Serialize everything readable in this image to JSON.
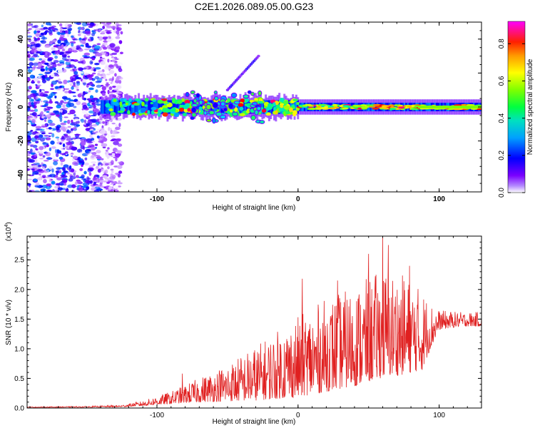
{
  "figure_title": "C2E1.2026.089.05.00.G23",
  "colors": {
    "snr_line": "#e02020",
    "axis": "#000000",
    "background": "#ffffff"
  },
  "chart_data": [
    {
      "type": "heatmap",
      "title": "C2E1.2026.089.05.00.G23",
      "xlabel": "Height of straight line (km)",
      "ylabel": "Frequency (Hz)",
      "xlim": [
        -192,
        130
      ],
      "ylim": [
        -50,
        50
      ],
      "x_ticks": [
        -100,
        0,
        100
      ],
      "y_ticks": [
        -40,
        -20,
        0,
        20,
        40
      ],
      "colorbar": {
        "label": "Normalized spectral amplitude",
        "range": [
          0.0,
          0.92
        ],
        "ticks": [
          0.0,
          0.2,
          0.4,
          0.6,
          0.8
        ],
        "colormap": [
          "#ffffff",
          "#7a00ff",
          "#0000ff",
          "#00ccff",
          "#00ff80",
          "#80ff00",
          "#ffff00",
          "#ff8000",
          "#ff0000",
          "#ff00ff"
        ]
      },
      "features": [
        {
          "name": "noise region",
          "x_range": [
            -192,
            -125
          ],
          "y_range": [
            -50,
            50
          ],
          "amplitude": 0.12
        },
        {
          "name": "carrier band",
          "x_range": [
            -140,
            130
          ],
          "center_frequency": 0,
          "half_width_hz": [
            4,
            3
          ],
          "amplitude": 0.85
        },
        {
          "name": "diagonal streak",
          "x_range": [
            -50,
            -28
          ],
          "y_range": [
            10,
            30
          ],
          "amplitude": 0.15
        }
      ]
    },
    {
      "type": "line",
      "xlabel": "Height of straight line (km)",
      "ylabel": "SNR (10 * v/v)",
      "y_multiplier": "(x10",
      "y_multiplier_exp": "4",
      "xlim": [
        -192,
        130
      ],
      "ylim": [
        0,
        2.9
      ],
      "x_ticks": [
        -100,
        0,
        100
      ],
      "y_ticks": [
        0.0,
        0.5,
        1.0,
        1.5,
        2.0,
        2.5
      ],
      "envelope": {
        "x": [
          -192,
          -150,
          -125,
          -110,
          -90,
          -75,
          -50,
          -30,
          -15,
          0,
          20,
          40,
          60,
          75,
          88,
          95,
          100,
          115,
          130
        ],
        "values": [
          0.02,
          0.03,
          0.05,
          0.12,
          0.28,
          0.45,
          0.75,
          1.05,
          1.3,
          1.55,
          1.85,
          2.05,
          2.35,
          2.25,
          2.0,
          1.75,
          1.65,
          1.62,
          1.62
        ],
        "base_fraction": [
          0.45,
          0.4,
          0.35,
          0.3,
          0.25,
          0.2,
          0.15,
          0.12,
          0.12,
          0.12,
          0.15,
          0.18,
          0.22,
          0.25,
          0.32,
          0.6,
          0.8,
          0.85,
          0.85
        ]
      },
      "peak": {
        "x": 60,
        "value": 2.9
      },
      "spikes": [
        {
          "x": -82,
          "value": 0.58
        },
        {
          "x": 3,
          "value": 2.18
        },
        {
          "x": 28,
          "value": 2.15
        },
        {
          "x": 50,
          "value": 2.6
        },
        {
          "x": 64,
          "value": 2.75
        },
        {
          "x": 79,
          "value": 2.4
        }
      ]
    }
  ]
}
